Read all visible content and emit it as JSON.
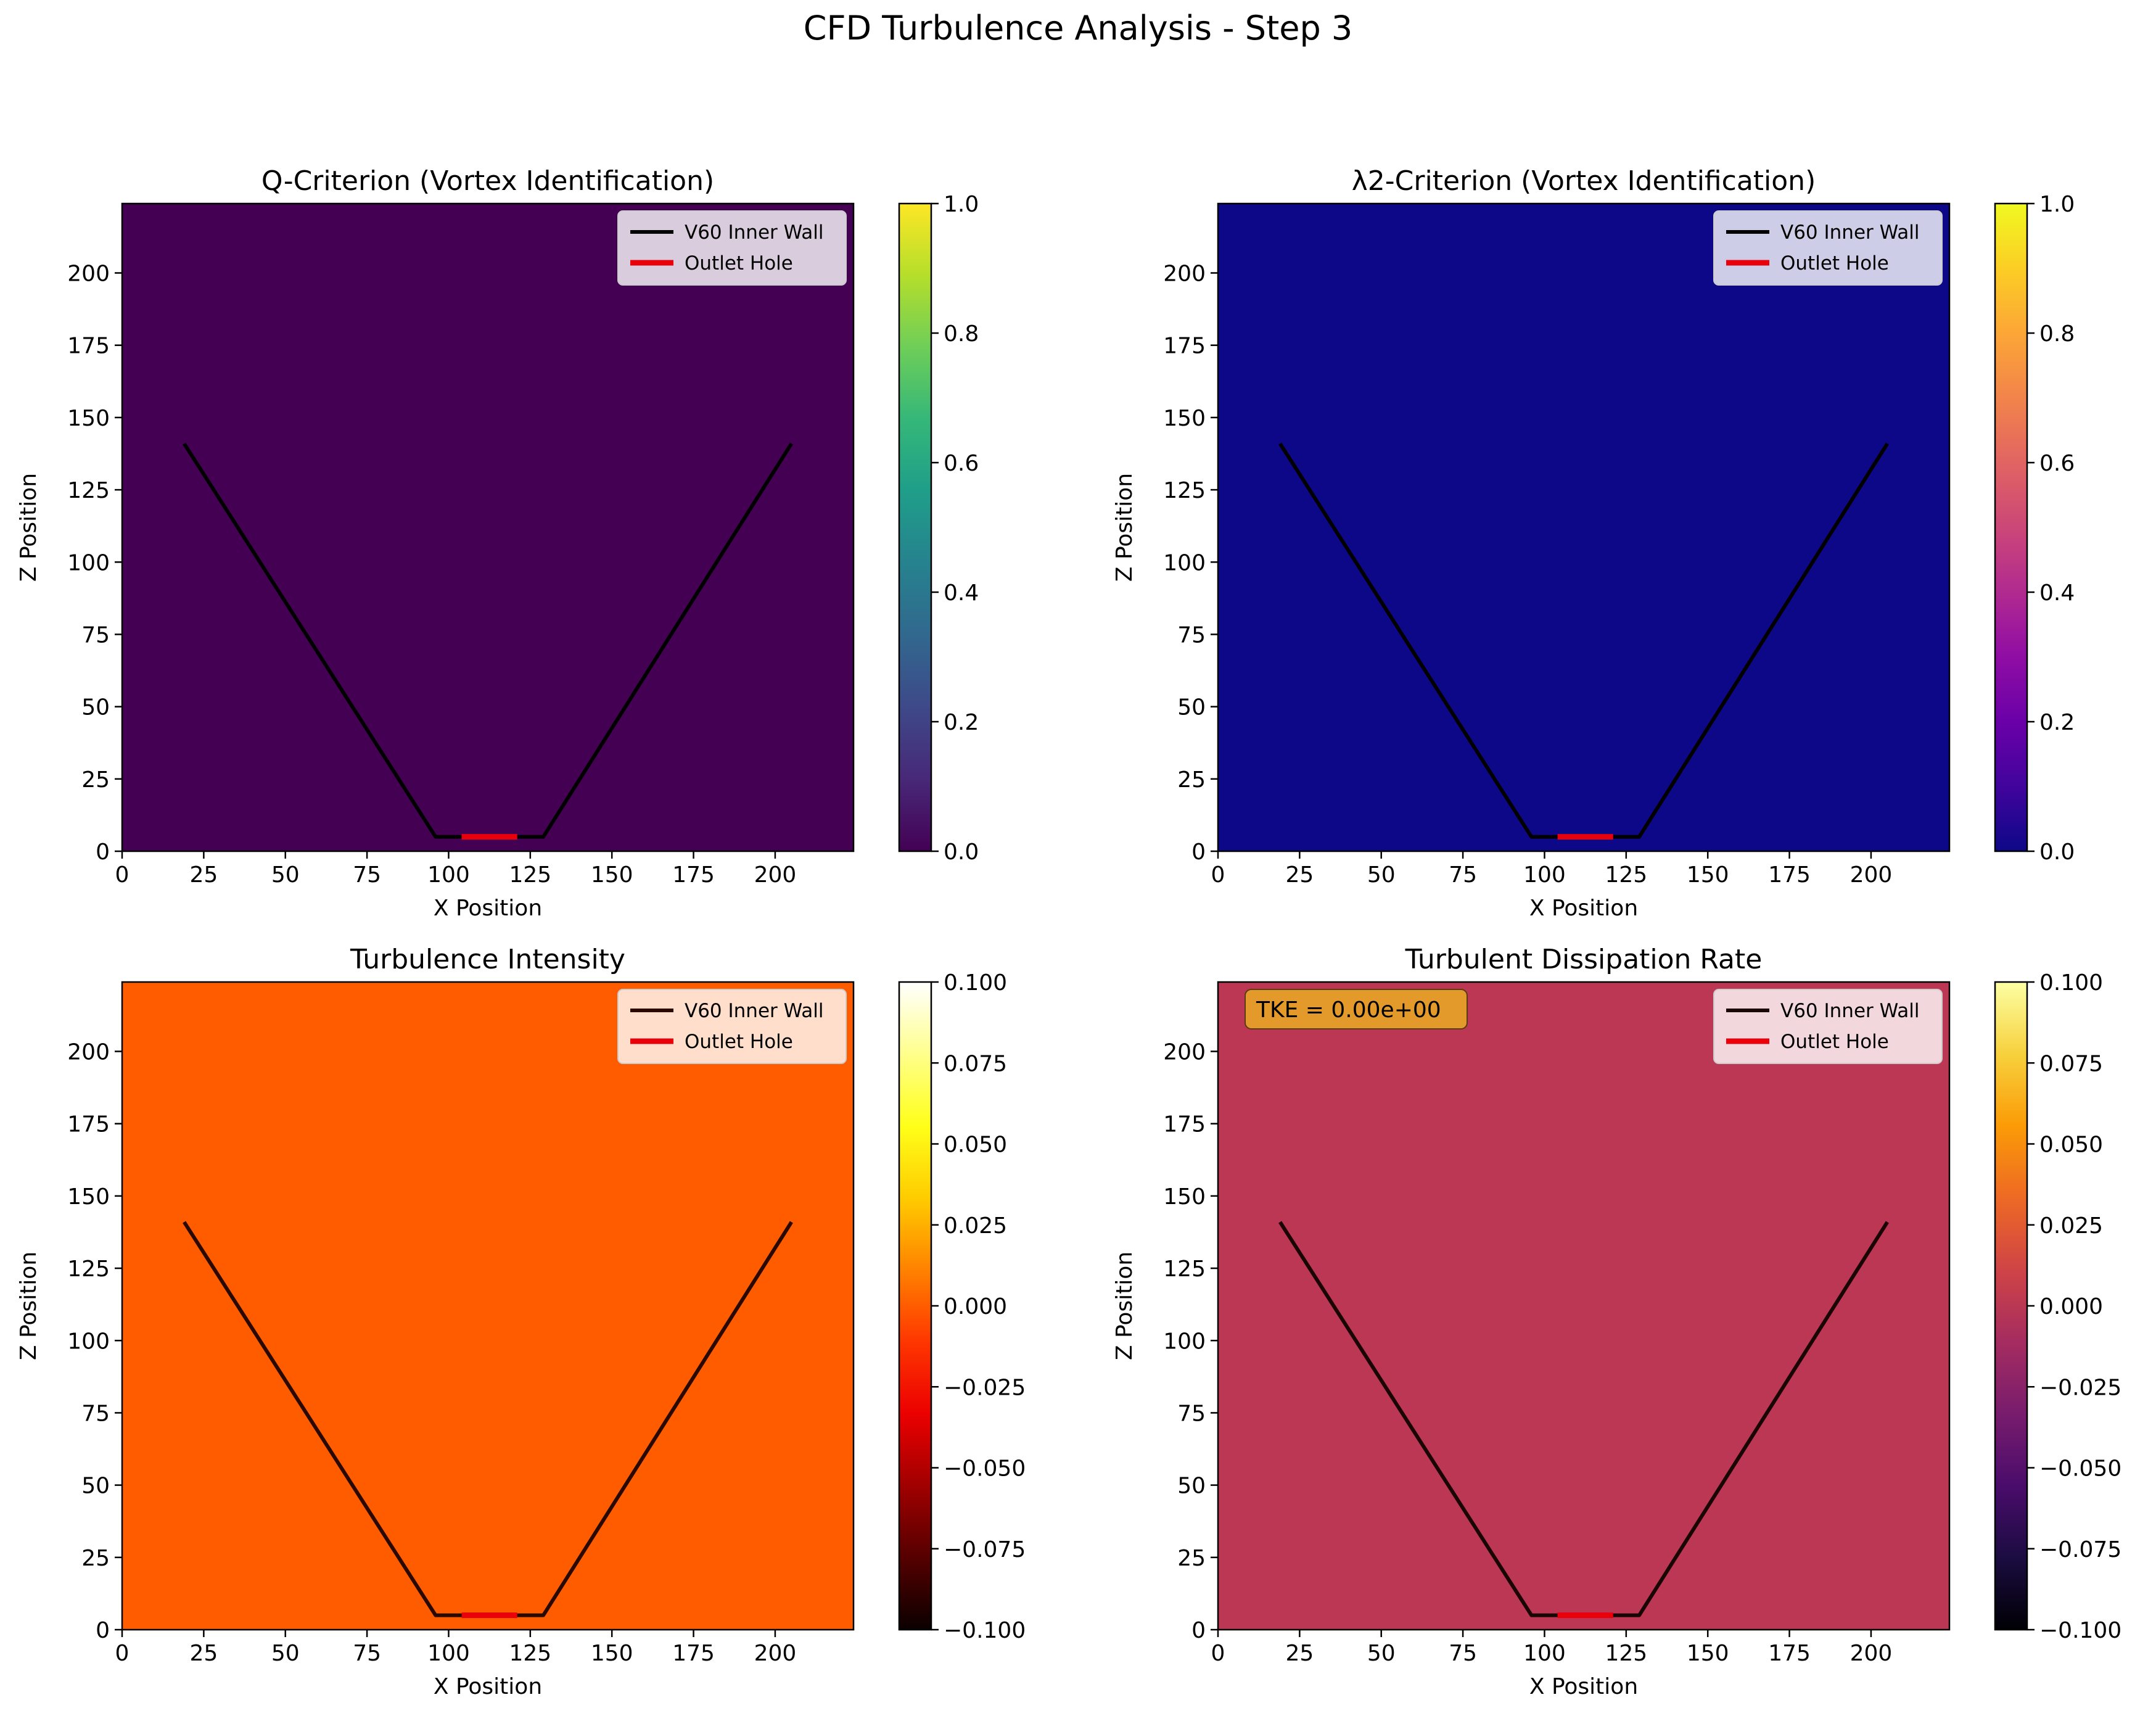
{
  "suptitle": "CFD Turbulence Analysis - Step 3",
  "chart_data": [
    {
      "type": "heatmap",
      "title": "Q-Criterion (Vortex Identification)",
      "xlabel": "X Position",
      "ylabel": "Z Position",
      "xlim": [
        0,
        224
      ],
      "ylim": [
        0,
        224
      ],
      "xticks": [
        0,
        25,
        50,
        75,
        100,
        125,
        150,
        175,
        200
      ],
      "yticks": [
        0,
        25,
        50,
        75,
        100,
        125,
        150,
        175,
        200
      ],
      "field_value": 0.0,
      "field_color": "#440154",
      "colorbar": {
        "colormap": "viridis",
        "range": [
          0.0,
          1.0
        ],
        "ticks": [
          0.0,
          0.2,
          0.4,
          0.6,
          0.8,
          1.0
        ],
        "tick_labels": [
          "0.0",
          "0.2",
          "0.4",
          "0.6",
          "0.8",
          "1.0"
        ],
        "stops": [
          "#440154",
          "#482878",
          "#3e4989",
          "#31688e",
          "#26828e",
          "#1f9e89",
          "#35b779",
          "#6ece58",
          "#b5de2b",
          "#fde725"
        ]
      },
      "series": [
        {
          "name": "V60 Inner Wall",
          "color": "#000000",
          "x": [
            19,
            96,
            129,
            205
          ],
          "y": [
            141,
            5,
            5,
            141
          ]
        },
        {
          "name": "Outlet Hole",
          "color": "#e8000b",
          "x": [
            104,
            121
          ],
          "y": [
            5,
            5
          ]
        }
      ],
      "legend": "upper right",
      "wall_color": "#000000",
      "annotation": ""
    },
    {
      "type": "heatmap",
      "title": "λ2-Criterion (Vortex Identification)",
      "xlabel": "X Position",
      "ylabel": "Z Position",
      "xlim": [
        0,
        224
      ],
      "ylim": [
        0,
        224
      ],
      "xticks": [
        0,
        25,
        50,
        75,
        100,
        125,
        150,
        175,
        200
      ],
      "yticks": [
        0,
        25,
        50,
        75,
        100,
        125,
        150,
        175,
        200
      ],
      "field_value": 0.0,
      "field_color": "#0d0887",
      "colorbar": {
        "colormap": "plasma",
        "range": [
          0.0,
          1.0
        ],
        "ticks": [
          0.0,
          0.2,
          0.4,
          0.6,
          0.8,
          1.0
        ],
        "tick_labels": [
          "0.0",
          "0.2",
          "0.4",
          "0.6",
          "0.8",
          "1.0"
        ],
        "stops": [
          "#0d0887",
          "#41049d",
          "#6a00a8",
          "#8f0da4",
          "#b12a90",
          "#cc4778",
          "#e16462",
          "#f2844b",
          "#fca636",
          "#fcce25",
          "#f0f921"
        ]
      },
      "series": [
        {
          "name": "V60 Inner Wall",
          "color": "#000000",
          "x": [
            19,
            96,
            129,
            205
          ],
          "y": [
            141,
            5,
            5,
            141
          ]
        },
        {
          "name": "Outlet Hole",
          "color": "#e8000b",
          "x": [
            104,
            121
          ],
          "y": [
            5,
            5
          ]
        }
      ],
      "legend": "upper right",
      "wall_color": "#000000",
      "annotation": ""
    },
    {
      "type": "heatmap",
      "title": "Turbulence Intensity",
      "xlabel": "X Position",
      "ylabel": "Z Position",
      "xlim": [
        0,
        224
      ],
      "ylim": [
        0,
        224
      ],
      "xticks": [
        0,
        25,
        50,
        75,
        100,
        125,
        150,
        175,
        200
      ],
      "yticks": [
        0,
        25,
        50,
        75,
        100,
        125,
        150,
        175,
        200
      ],
      "field_value": 0.0,
      "field_color": "#ff5c00",
      "colorbar": {
        "colormap": "hot",
        "range": [
          -0.1,
          0.1
        ],
        "ticks": [
          -0.1,
          -0.075,
          -0.05,
          -0.025,
          0.0,
          0.025,
          0.05,
          0.075,
          0.1
        ],
        "tick_labels": [
          "−0.100",
          "−0.075",
          "−0.050",
          "−0.025",
          "0.000",
          "0.025",
          "0.050",
          "0.075",
          "0.100"
        ],
        "stops": [
          "#0b0000",
          "#550000",
          "#a00000",
          "#eb0000",
          "#ff3600",
          "#ff8200",
          "#ffcc00",
          "#ffff19",
          "#ffff8c",
          "#ffffff"
        ]
      },
      "series": [
        {
          "name": "V60 Inner Wall",
          "color": "#2a0a00",
          "x": [
            19,
            96,
            129,
            205
          ],
          "y": [
            141,
            5,
            5,
            141
          ]
        },
        {
          "name": "Outlet Hole",
          "color": "#e8000b",
          "x": [
            104,
            121
          ],
          "y": [
            5,
            5
          ]
        }
      ],
      "legend": "upper right",
      "wall_color": "#2a0a00",
      "annotation": ""
    },
    {
      "type": "heatmap",
      "title": "Turbulent Dissipation Rate",
      "xlabel": "X Position",
      "ylabel": "Z Position",
      "xlim": [
        0,
        224
      ],
      "ylim": [
        0,
        224
      ],
      "xticks": [
        0,
        25,
        50,
        75,
        100,
        125,
        150,
        175,
        200
      ],
      "yticks": [
        0,
        25,
        50,
        75,
        100,
        125,
        150,
        175,
        200
      ],
      "field_value": 0.0,
      "field_color": "#bc3754",
      "colorbar": {
        "colormap": "inferno",
        "range": [
          -0.1,
          0.1
        ],
        "ticks": [
          -0.1,
          -0.075,
          -0.05,
          -0.025,
          0.0,
          0.025,
          0.05,
          0.075,
          0.1
        ],
        "tick_labels": [
          "−0.100",
          "−0.075",
          "−0.050",
          "−0.025",
          "0.000",
          "0.025",
          "0.050",
          "0.075",
          "0.100"
        ],
        "stops": [
          "#000004",
          "#1b0c41",
          "#4a0c6b",
          "#781c6d",
          "#a52c60",
          "#cf4446",
          "#ed6925",
          "#fb9b06",
          "#f7d13d",
          "#fcffa4"
        ]
      },
      "series": [
        {
          "name": "V60 Inner Wall",
          "color": "#1a0505",
          "x": [
            19,
            96,
            129,
            205
          ],
          "y": [
            141,
            5,
            5,
            141
          ]
        },
        {
          "name": "Outlet Hole",
          "color": "#e8000b",
          "x": [
            104,
            121
          ],
          "y": [
            5,
            5
          ]
        }
      ],
      "legend": "upper right",
      "wall_color": "#1a0505",
      "annotation": "TKE = 0.00e+00",
      "annotation_color": "#e39a2b"
    }
  ]
}
